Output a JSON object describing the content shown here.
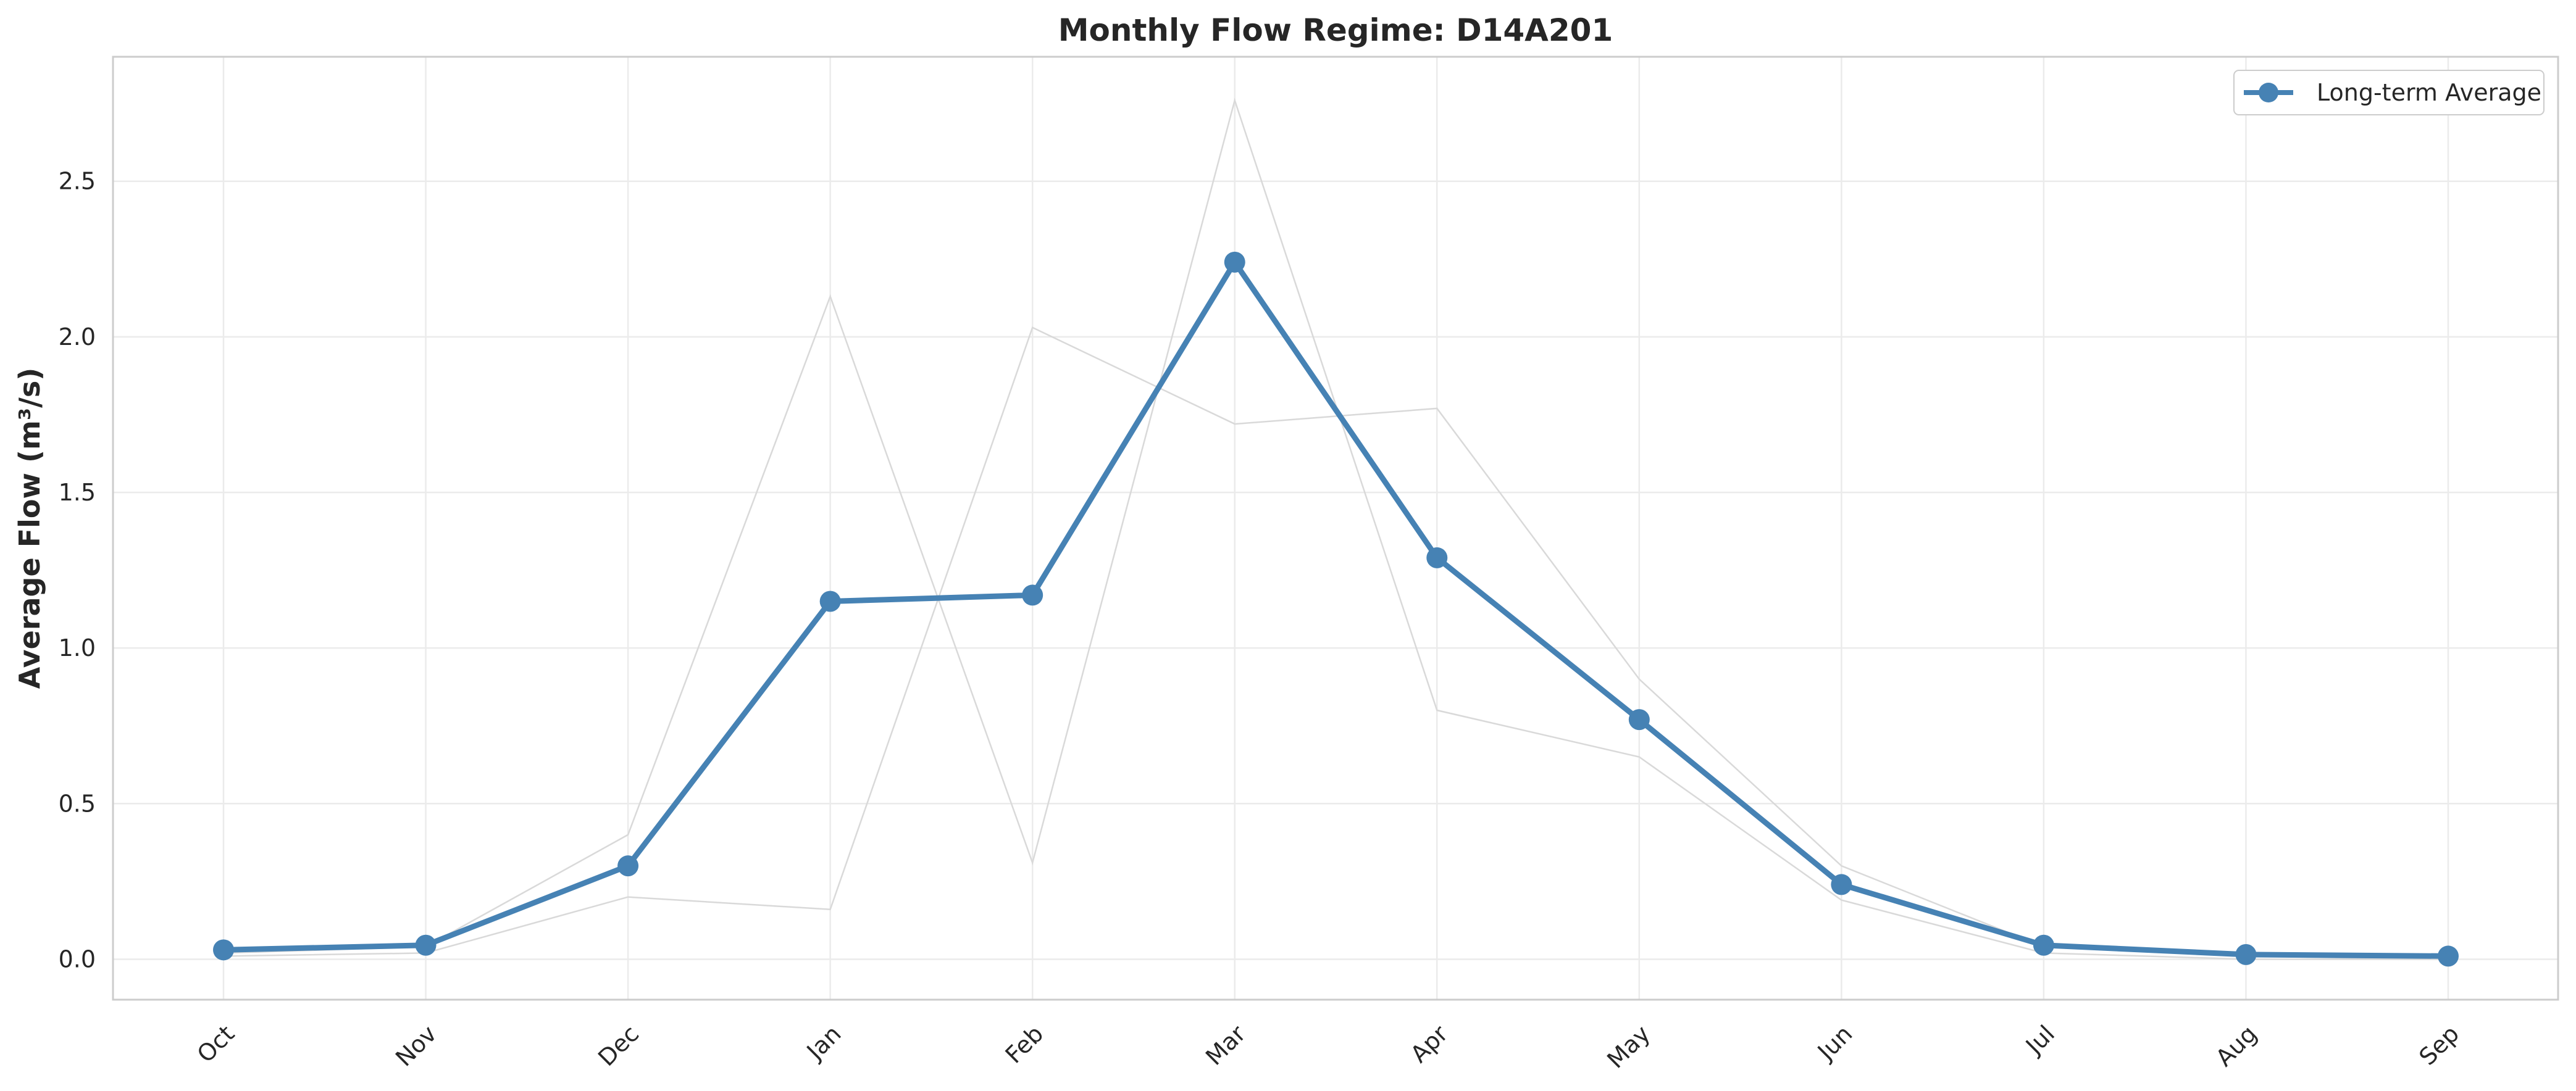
{
  "chart_data": {
    "type": "line",
    "title": "Monthly Flow Regime: D14A201",
    "xlabel": "",
    "ylabel": "Average Flow (m³/s)",
    "categories": [
      "Oct",
      "Nov",
      "Dec",
      "Jan",
      "Feb",
      "Mar",
      "Apr",
      "May",
      "Jun",
      "Jul",
      "Aug",
      "Sep"
    ],
    "ylim": [
      -0.13,
      2.9
    ],
    "yticks": [
      0.0,
      0.5,
      1.0,
      1.5,
      2.0,
      2.5
    ],
    "ytick_labels": [
      "0.0",
      "0.5",
      "1.0",
      "1.5",
      "2.0",
      "2.5"
    ],
    "grid": true,
    "legend_position": "top-right",
    "series": [
      {
        "name": "Long-term Average",
        "values": [
          0.03,
          0.045,
          0.3,
          1.15,
          1.17,
          2.24,
          1.29,
          0.77,
          0.24,
          0.045,
          0.015,
          0.01
        ],
        "color": "#4682b4",
        "style": "line-with-markers"
      }
    ],
    "background_series": [
      {
        "values": [
          0.02,
          0.04,
          0.4,
          2.13,
          0.31,
          2.76,
          0.8,
          0.65,
          0.19,
          0.02,
          0.0,
          0.0
        ],
        "color": "#d9d9d9"
      },
      {
        "values": [
          0.01,
          0.02,
          0.2,
          0.16,
          2.03,
          1.72,
          1.77,
          0.9,
          0.3,
          0.04,
          0.01,
          0.0
        ],
        "color": "#d9d9d9"
      }
    ]
  },
  "colors": {
    "axis_frame": "#cccccc",
    "grid": "#ebebeb"
  }
}
